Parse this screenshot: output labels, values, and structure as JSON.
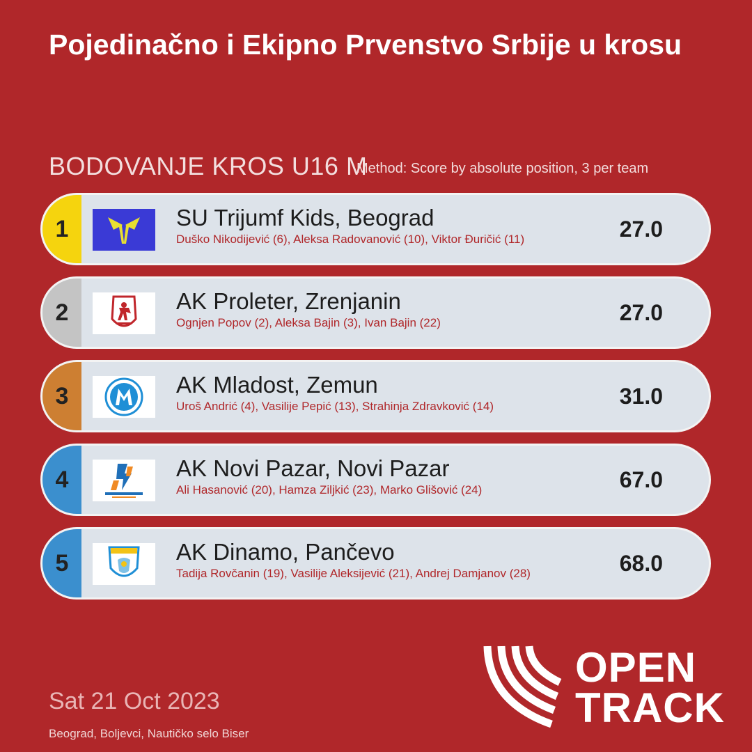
{
  "header": {
    "title": "Pojedinačno i Ekipno Prvenstvo Srbije u krosu",
    "subtitle": "BODOVANJE KROS U16 M",
    "method": "Method: Score by absolute position, 3 per team"
  },
  "teams": [
    {
      "rank": "1",
      "name": "SU Trijumf Kids, Beograd",
      "athletes": "Duško Nikodijević (6), Aleksa Radovanović (10), Viktor Đuričić (11)",
      "score": "27.0",
      "rank_color": "#f5d40e",
      "logo_icon": "trijumf-logo"
    },
    {
      "rank": "2",
      "name": "AK Proleter, Zrenjanin",
      "athletes": "Ognjen Popov (2), Aleksa Bajin (3), Ivan Bajin (22)",
      "score": "27.0",
      "rank_color": "#c4c4c4",
      "logo_icon": "proleter-logo"
    },
    {
      "rank": "3",
      "name": "AK Mladost, Zemun",
      "athletes": "Uroš Andrić (4), Vasilije Pepić (13), Strahinja Zdravković (14)",
      "score": "31.0",
      "rank_color": "#cd7f32",
      "logo_icon": "mladost-logo"
    },
    {
      "rank": "4",
      "name": "AK Novi Pazar, Novi Pazar",
      "athletes": "Ali Hasanović (20), Hamza Ziljkić (23), Marko Glišović (24)",
      "score": "67.0",
      "rank_color": "#3b8fce",
      "logo_icon": "novi-pazar-logo"
    },
    {
      "rank": "5",
      "name": "AK Dinamo, Pančevo",
      "athletes": "Tadija Rovčanin (19), Vasilije Aleksijević (21), Andrej Damjanov (28)",
      "score": "68.0",
      "rank_color": "#3b8fce",
      "logo_icon": "dinamo-logo"
    }
  ],
  "footer": {
    "date": "Sat 21 Oct 2023",
    "venue": "Beograd, Boljevci, Nautičko selo Biser",
    "brand_line1": "OPEN",
    "brand_line2": "TRACK"
  },
  "colors": {
    "background": "#b0272a",
    "card": "#dde3ea",
    "accent_text": "#b0272a"
  }
}
